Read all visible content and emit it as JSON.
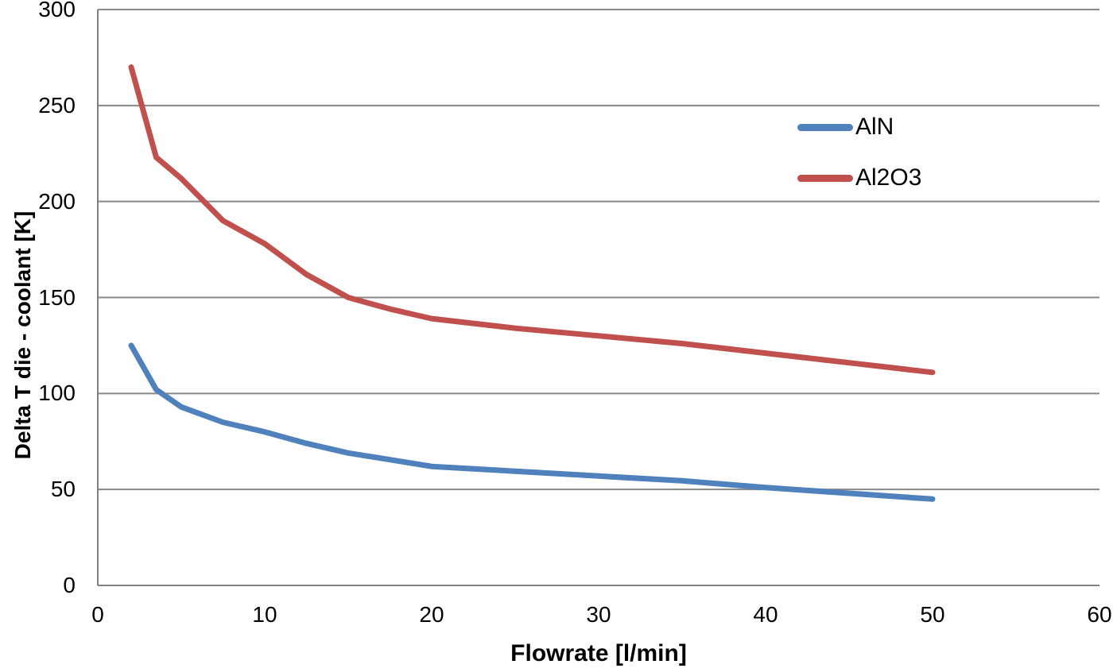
{
  "chart_data": {
    "type": "line",
    "title": "",
    "xlabel": "Flowrate [l/min]",
    "ylabel": "Delta T die - coolant [K]",
    "xlim": [
      0,
      60
    ],
    "ylim": [
      0,
      300
    ],
    "xticks": [
      0,
      10,
      20,
      30,
      40,
      50,
      60
    ],
    "yticks": [
      0,
      50,
      100,
      150,
      200,
      250,
      300
    ],
    "grid": "horizontal-only",
    "gridline_color": "#878787",
    "axis_color": "#808080",
    "text_color": "#000000",
    "background_color": "#ffffff",
    "legend_position": "inside-upper-right",
    "x": [
      2,
      3.5,
      5,
      7.5,
      10,
      12.5,
      15,
      17.5,
      20,
      25,
      30,
      35,
      40,
      45,
      50
    ],
    "series": [
      {
        "name": "AlN",
        "color": "#4F81BD",
        "values": [
          125,
          102,
          93,
          85,
          80,
          74,
          69,
          65.5,
          62,
          59.5,
          57,
          54.5,
          51,
          48,
          45
        ]
      },
      {
        "name": "Al2O3",
        "color": "#C0504D",
        "values": [
          270,
          223,
          212,
          190,
          178,
          162,
          150,
          144,
          139,
          134,
          130,
          126,
          121,
          116,
          111
        ]
      }
    ]
  }
}
